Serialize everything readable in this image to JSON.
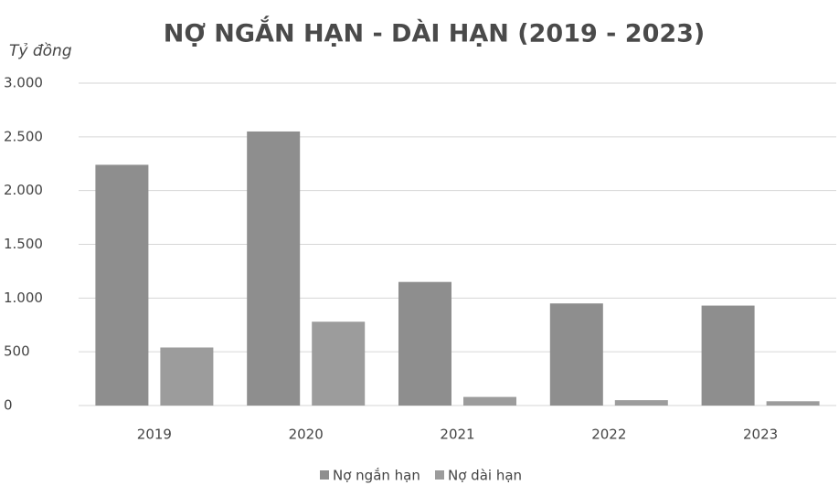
{
  "chart_data": {
    "type": "bar",
    "title": "NỢ NGẮN HẠN - DÀI HẠN (2019 - 2023)",
    "y_label": "Tỷ đồng",
    "categories": [
      "2019",
      "2020",
      "2021",
      "2022",
      "2023"
    ],
    "series": [
      {
        "name": "Nợ ngắn hạn",
        "color": "#8e8e8e",
        "values": [
          2240,
          2550,
          1150,
          950,
          930
        ]
      },
      {
        "name": "Nợ dài hạn",
        "color": "#9c9c9c",
        "values": [
          540,
          780,
          80,
          50,
          40
        ]
      }
    ],
    "ylim": [
      0,
      3000
    ],
    "yticks": [
      0,
      500,
      {
        "value": 1000,
        "label": "1.000"
      },
      {
        "value": 1500,
        "label": "1.500"
      },
      {
        "value": 2000,
        "label": "2.000"
      },
      {
        "value": 2500,
        "label": "2.500"
      },
      {
        "value": 3000,
        "label": "3.000"
      }
    ],
    "grid": true,
    "legend": "bottom"
  }
}
